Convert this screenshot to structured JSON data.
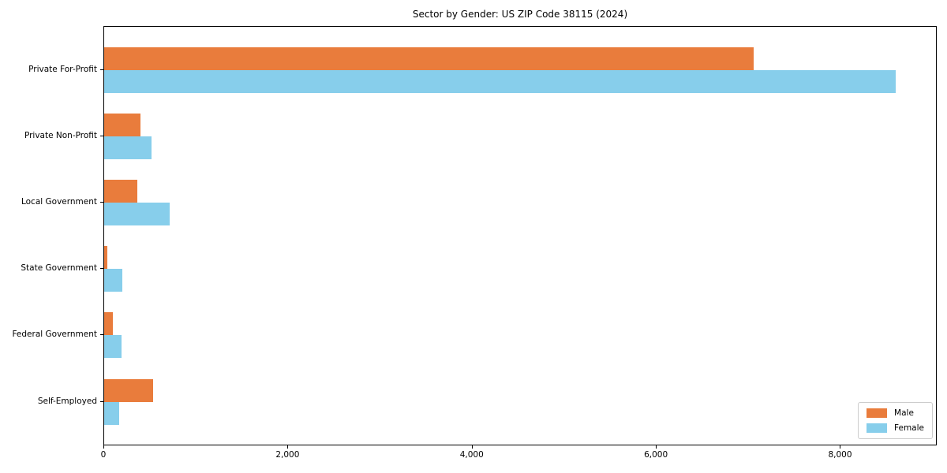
{
  "chart_data": {
    "type": "bar",
    "orientation": "horizontal",
    "title": "Sector by Gender: US ZIP Code 38115 (2024)",
    "categories": [
      "Private For-Profit",
      "Private Non-Profit",
      "Local Government",
      "State Government",
      "Federal Government",
      "Self-Employed"
    ],
    "series": [
      {
        "name": "Male",
        "color": "#e97c3c",
        "values": [
          7050,
          390,
          357,
          32,
          92,
          530
        ]
      },
      {
        "name": "Female",
        "color": "#87ceeb",
        "values": [
          8600,
          515,
          710,
          200,
          190,
          163
        ]
      }
    ],
    "xlabel": "",
    "ylabel": "",
    "xlim": [
      0,
      9050
    ],
    "x_ticks": [
      0,
      2000,
      4000,
      6000,
      8000
    ],
    "x_tick_labels": [
      "0",
      "2,000",
      "4,000",
      "6,000",
      "8,000"
    ],
    "grid": false,
    "legend": {
      "position": "lower right",
      "entries": [
        "Male",
        "Female"
      ]
    }
  }
}
